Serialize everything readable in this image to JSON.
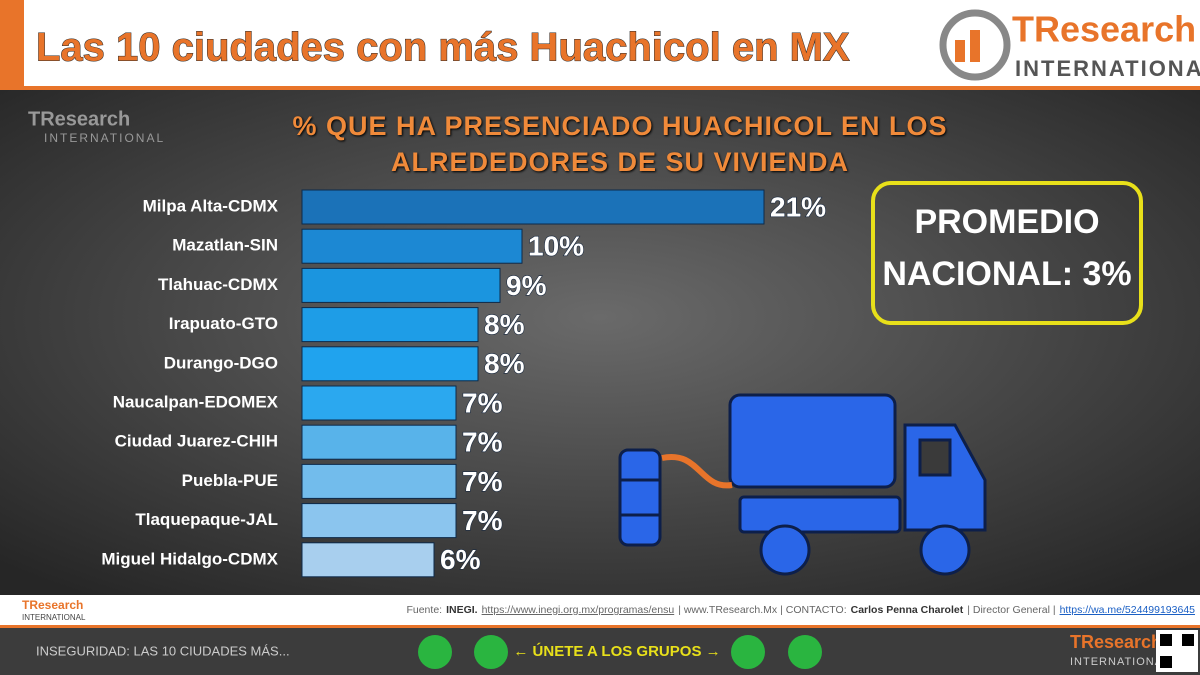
{
  "header": {
    "title": "Las 10 ciudades con más Huachicol en MX"
  },
  "brand": {
    "name": "TResearch",
    "tagline": "INTERNATIONAL"
  },
  "chart_data": {
    "type": "bar",
    "orientation": "horizontal",
    "title": "% QUE HA PRESENCIADO HUACHICOL EN LOS ALREDEDORES DE SU VIVIENDA",
    "categories": [
      "Milpa Alta-CDMX",
      "Mazatlan-SIN",
      "Tlahuac-CDMX",
      "Irapuato-GTO",
      "Durango-DGO",
      "Naucalpan-EDOMEX",
      "Ciudad Juarez-CHIH",
      "Puebla-PUE",
      "Tlaquepaque-JAL",
      "Miguel Hidalgo-CDMX"
    ],
    "values": [
      21,
      10,
      9,
      8,
      8,
      7,
      7,
      7,
      7,
      6
    ],
    "value_labels": [
      "21%",
      "10%",
      "9%",
      "8%",
      "8%",
      "7%",
      "7%",
      "7%",
      "7%",
      "6%"
    ],
    "colors": [
      "#1b72b8",
      "#1c88d3",
      "#1b95df",
      "#1e9de7",
      "#20a3ee",
      "#2ba8ef",
      "#58b3ea",
      "#72bcec",
      "#8bc5ee",
      "#a8cfee"
    ]
  },
  "callout": {
    "line1": "PROMEDIO",
    "line2": "NACIONAL: 3%"
  },
  "footer": {
    "source": [
      "Fuente:",
      "INEGI.",
      "https://www.inegi.org.mx/programas/ensu",
      "| www.TResearch.Mx | CONTACTO:",
      "Carlos Penna Charolet",
      "| Director General |",
      "https://wa.me/524499193645"
    ],
    "topic": "INSEGURIDAD: LAS 10 CIUDADES MÁS...",
    "cta": "← ÚNETE A LOS GRUPOS →"
  }
}
